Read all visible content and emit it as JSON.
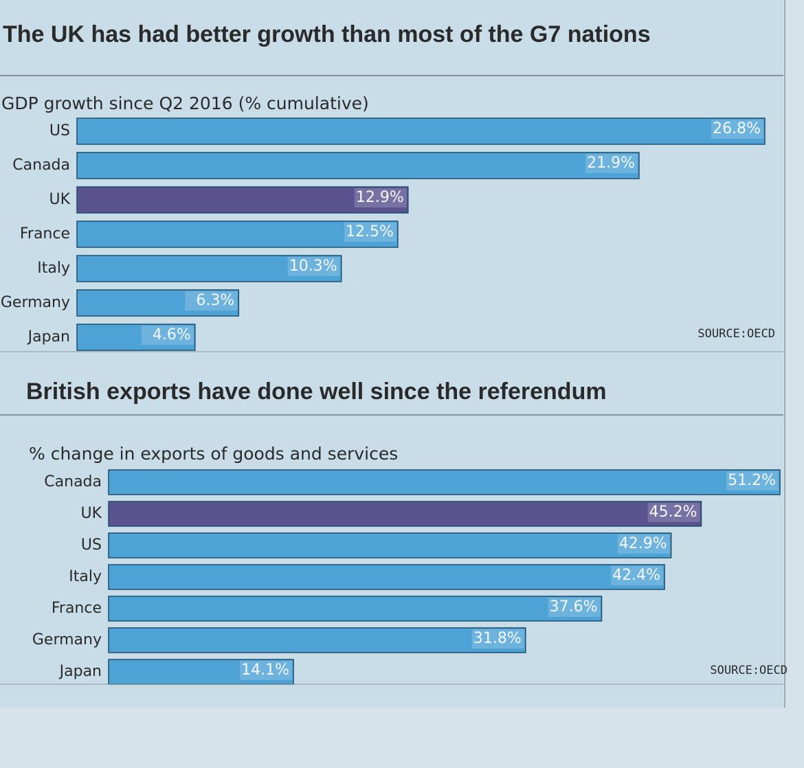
{
  "chart_data": [
    {
      "type": "bar",
      "orientation": "horizontal",
      "title": "The UK has had better growth than most of the G7 nations",
      "subtitle": "GDP growth since Q2 2016 (% cumulative)",
      "categories": [
        "US",
        "Canada",
        "UK",
        "France",
        "Italy",
        "Germany",
        "Japan"
      ],
      "values": [
        26.8,
        21.9,
        12.9,
        12.5,
        10.3,
        6.3,
        4.6
      ],
      "value_labels": [
        "26.8%",
        "21.9%",
        "12.9%",
        "12.5%",
        "10.3%",
        "6.3%",
        "4.6%"
      ],
      "colors": [
        "#4ea3d6",
        "#4ea3d6",
        "#5b5290",
        "#4ea3d6",
        "#4ea3d6",
        "#4ea3d6",
        "#4ea3d6"
      ],
      "source": "SOURCE:OECD"
    },
    {
      "type": "bar",
      "orientation": "horizontal",
      "title": "British exports have done well since the referendum",
      "subtitle": "% change in exports of goods and services",
      "categories": [
        "Canada",
        "UK",
        "US",
        "Italy",
        "France",
        "Germany",
        "Japan"
      ],
      "values": [
        51.2,
        45.2,
        42.9,
        42.4,
        37.6,
        31.8,
        14.1
      ],
      "value_labels": [
        "51.2%",
        "45.2%",
        "42.9%",
        "42.4%",
        "37.6%",
        "31.8%",
        "14.1%"
      ],
      "colors": [
        "#4ea3d6",
        "#5b5290",
        "#4ea3d6",
        "#4ea3d6",
        "#4ea3d6",
        "#4ea3d6",
        "#4ea3d6"
      ],
      "source": "SOURCE:OECD"
    }
  ]
}
